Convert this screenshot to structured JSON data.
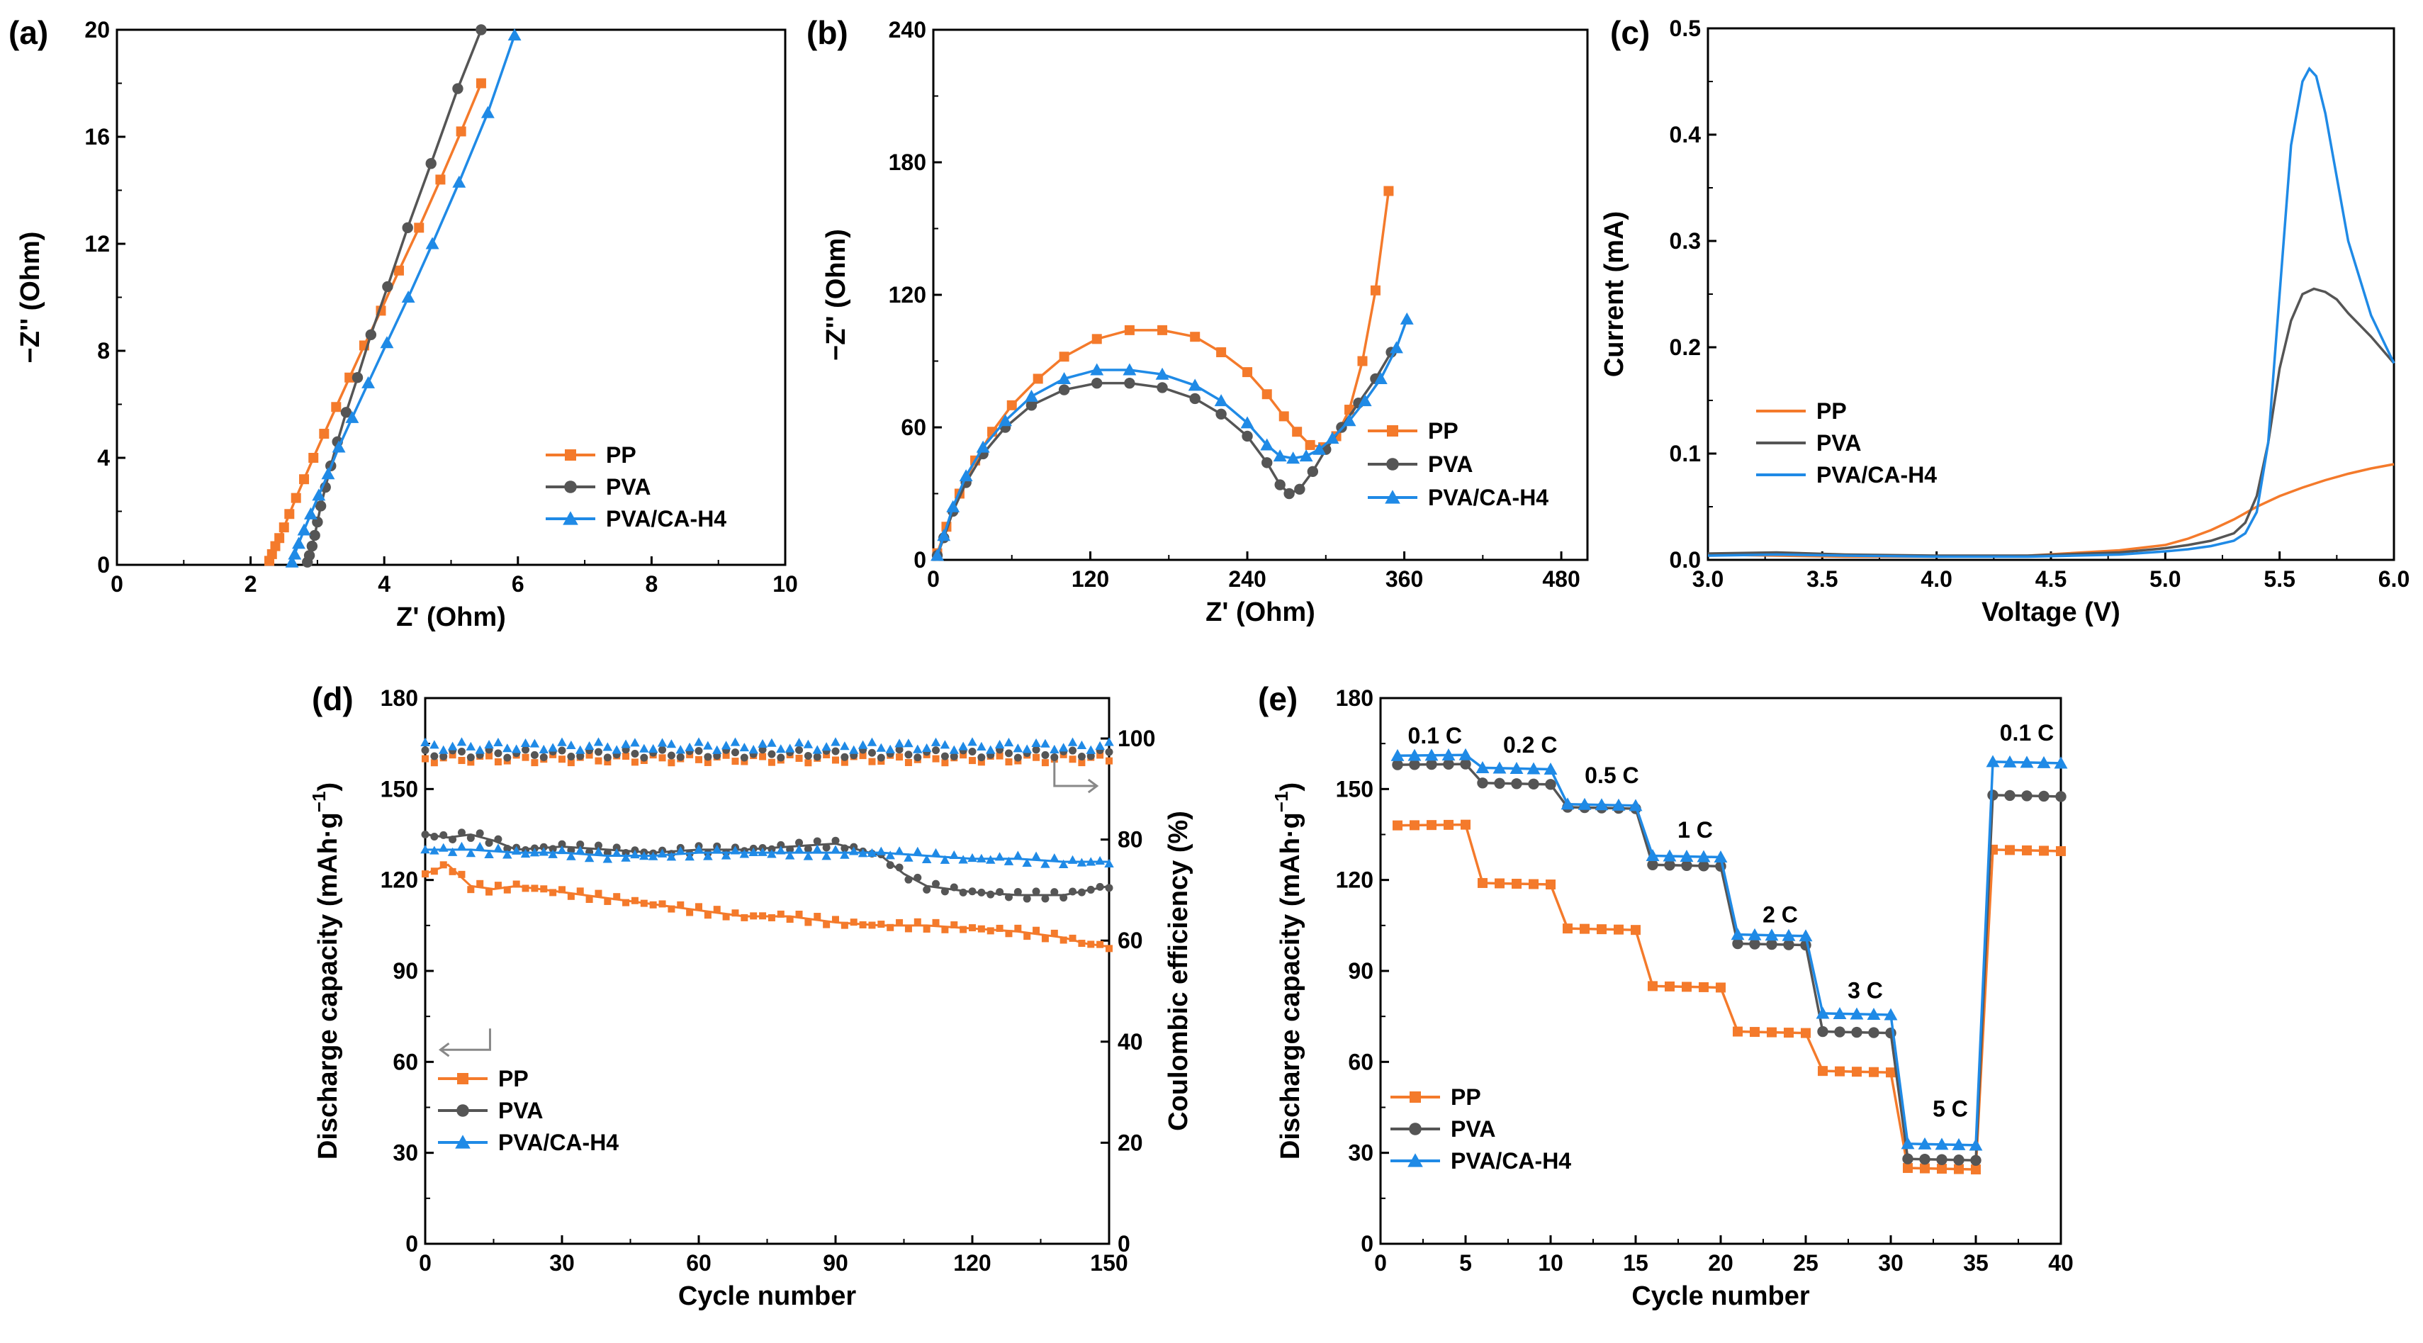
{
  "colors": {
    "PP": "#f47a2b",
    "PVA": "#555555",
    "PVA/CA-H4": "#1f8ae6"
  },
  "chart_data": [
    {
      "id": "a",
      "panel_label": "(a)",
      "type": "scatter-line",
      "xlabel": "Z' (Ohm)",
      "ylabel": "−Z'' (Ohm)",
      "xlim": [
        0,
        10
      ],
      "ylim": [
        0,
        20
      ],
      "xticks": [
        "0",
        "2",
        "4",
        "6",
        "8",
        "10"
      ],
      "yticks": [
        "0",
        "4",
        "8",
        "12",
        "16",
        "20"
      ],
      "legend": {
        "position": "bottom-right",
        "labels": [
          "PP",
          "PVA",
          "PVA/CA-H4"
        ]
      },
      "series": [
        {
          "name": "PP",
          "marker": "square",
          "x": [
            2.28,
            2.32,
            2.37,
            2.43,
            2.5,
            2.58,
            2.68,
            2.8,
            2.94,
            3.1,
            3.28,
            3.48,
            3.7,
            3.95,
            4.22,
            4.52,
            4.84,
            5.15,
            5.45
          ],
          "y": [
            0.15,
            0.4,
            0.7,
            1.0,
            1.4,
            1.9,
            2.5,
            3.2,
            4.0,
            4.9,
            5.9,
            7.0,
            8.2,
            9.5,
            11.0,
            12.6,
            14.4,
            16.2,
            18.0
          ]
        },
        {
          "name": "PVA",
          "marker": "circle",
          "x": [
            2.85,
            2.88,
            2.92,
            2.96,
            3.0,
            3.05,
            3.12,
            3.2,
            3.3,
            3.43,
            3.6,
            3.8,
            4.05,
            4.35,
            4.7,
            5.1,
            5.45
          ],
          "y": [
            0.1,
            0.35,
            0.7,
            1.1,
            1.6,
            2.2,
            2.9,
            3.7,
            4.6,
            5.7,
            7.0,
            8.6,
            10.4,
            12.6,
            15.0,
            17.8,
            20.0
          ]
        },
        {
          "name": "PVA/CA-H4",
          "marker": "triangle",
          "x": [
            2.62,
            2.66,
            2.72,
            2.8,
            2.9,
            3.02,
            3.16,
            3.32,
            3.52,
            3.76,
            4.04,
            4.36,
            4.72,
            5.12,
            5.55,
            5.95
          ],
          "y": [
            0.1,
            0.4,
            0.8,
            1.3,
            1.9,
            2.6,
            3.4,
            4.4,
            5.5,
            6.8,
            8.3,
            10.0,
            12.0,
            14.3,
            16.9,
            19.8
          ]
        }
      ]
    },
    {
      "id": "b",
      "panel_label": "(b)",
      "type": "scatter-line",
      "xlabel": "Z' (Ohm)",
      "ylabel": "−Z'' (Ohm)",
      "xlim": [
        0,
        500
      ],
      "ylim": [
        0,
        240
      ],
      "xticks": [
        "0",
        "120",
        "240",
        "360",
        "480"
      ],
      "yticks": [
        "0",
        "60",
        "120",
        "180",
        "240"
      ],
      "legend": {
        "position": "center-right",
        "labels": [
          "PP",
          "PVA",
          "PVA/CA-H4"
        ]
      },
      "series": [
        {
          "name": "PP",
          "marker": "square",
          "x": [
            3,
            10,
            20,
            32,
            45,
            60,
            80,
            100,
            125,
            150,
            175,
            200,
            220,
            240,
            255,
            268,
            278,
            288,
            298,
            308,
            318,
            328,
            338,
            348
          ],
          "y": [
            3,
            15,
            30,
            45,
            58,
            70,
            82,
            92,
            100,
            104,
            104,
            101,
            94,
            85,
            75,
            65,
            58,
            52,
            51,
            56,
            68,
            90,
            122,
            167
          ]
        },
        {
          "name": "PVA",
          "marker": "circle",
          "x": [
            3,
            8,
            15,
            25,
            38,
            55,
            75,
            100,
            125,
            150,
            175,
            200,
            220,
            240,
            255,
            265,
            272,
            280,
            290,
            300,
            312,
            325,
            338,
            350
          ],
          "y": [
            2,
            10,
            22,
            35,
            48,
            60,
            70,
            77,
            80,
            80,
            78,
            73,
            66,
            56,
            44,
            34,
            30,
            32,
            40,
            50,
            60,
            71,
            82,
            94
          ]
        },
        {
          "name": "PVA/CA-H4",
          "marker": "triangle",
          "x": [
            3,
            8,
            15,
            25,
            38,
            55,
            75,
            100,
            125,
            150,
            175,
            200,
            220,
            240,
            255,
            265,
            275,
            285,
            295,
            305,
            318,
            330,
            342,
            354,
            362
          ],
          "y": [
            2,
            11,
            24,
            38,
            51,
            63,
            74,
            82,
            86,
            86,
            84,
            79,
            72,
            62,
            52,
            47,
            46,
            47,
            50,
            55,
            63,
            72,
            82,
            96,
            109
          ]
        }
      ]
    },
    {
      "id": "c",
      "panel_label": "(c)",
      "type": "line",
      "xlabel": "Voltage (V)",
      "ylabel": "Current (mA)",
      "xlim": [
        3.0,
        6.0
      ],
      "ylim": [
        0,
        0.5
      ],
      "xticks": [
        "3.0",
        "3.5",
        "4.0",
        "4.5",
        "5.0",
        "5.5",
        "6.0"
      ],
      "yticks": [
        "0.0",
        "0.1",
        "0.2",
        "0.3",
        "0.4",
        "0.5"
      ],
      "legend": {
        "position": "middle-left",
        "labels": [
          "PP",
          "PVA",
          "PVA/CA-H4"
        ]
      },
      "series": [
        {
          "name": "PP",
          "x": [
            3.0,
            3.3,
            3.6,
            4.0,
            4.4,
            4.8,
            5.0,
            5.1,
            5.2,
            5.3,
            5.4,
            5.5,
            5.6,
            5.7,
            5.8,
            5.9,
            6.0
          ],
          "y": [
            0.005,
            0.004,
            0.003,
            0.003,
            0.004,
            0.009,
            0.014,
            0.02,
            0.028,
            0.038,
            0.05,
            0.06,
            0.068,
            0.075,
            0.081,
            0.086,
            0.09
          ]
        },
        {
          "name": "PVA",
          "x": [
            3.0,
            3.3,
            3.6,
            4.0,
            4.4,
            4.8,
            5.0,
            5.1,
            5.2,
            5.3,
            5.35,
            5.4,
            5.45,
            5.5,
            5.55,
            5.6,
            5.65,
            5.7,
            5.75,
            5.8,
            5.9,
            6.0
          ],
          "y": [
            0.006,
            0.007,
            0.005,
            0.004,
            0.004,
            0.007,
            0.011,
            0.014,
            0.018,
            0.025,
            0.035,
            0.06,
            0.11,
            0.18,
            0.225,
            0.25,
            0.255,
            0.252,
            0.245,
            0.232,
            0.21,
            0.185
          ]
        },
        {
          "name": "PVA/CA-H4",
          "x": [
            3.0,
            3.3,
            3.6,
            4.0,
            4.4,
            4.8,
            5.0,
            5.1,
            5.2,
            5.3,
            5.35,
            5.4,
            5.45,
            5.5,
            5.55,
            5.6,
            5.63,
            5.66,
            5.7,
            5.75,
            5.8,
            5.9,
            6.0
          ],
          "y": [
            0.004,
            0.005,
            0.004,
            0.003,
            0.003,
            0.005,
            0.008,
            0.01,
            0.013,
            0.018,
            0.025,
            0.045,
            0.11,
            0.25,
            0.39,
            0.45,
            0.462,
            0.455,
            0.42,
            0.36,
            0.3,
            0.23,
            0.185
          ]
        }
      ]
    },
    {
      "id": "d",
      "panel_label": "(d)",
      "type": "scatter-dual-axis",
      "xlabel": "Cycle number",
      "ylabel": "Discharge capacity (mAh·g",
      "ylabel_sup": "−1",
      "ylabel_end": ")",
      "y2label": "Coulombic efficiency (%)",
      "xlim": [
        0,
        150
      ],
      "ylim": [
        0,
        180
      ],
      "y2lim": [
        0,
        108
      ],
      "xticks": [
        "0",
        "30",
        "60",
        "90",
        "120",
        "150"
      ],
      "yticks": [
        "0",
        "30",
        "60",
        "90",
        "120",
        "150",
        "180"
      ],
      "y2ticks": [
        "0",
        "20",
        "40",
        "60",
        "80",
        "100"
      ],
      "legend": {
        "position": "bottom-left",
        "labels": [
          "PP",
          "PVA",
          "PVA/CA-H4"
        ]
      },
      "capacity_series": [
        {
          "name": "PP",
          "marker": "square",
          "x": [
            0,
            5,
            10,
            15,
            20,
            30,
            40,
            50,
            60,
            70,
            80,
            90,
            100,
            110,
            120,
            130,
            140,
            145,
            150
          ],
          "y": [
            122,
            125,
            118,
            117,
            118,
            116,
            114,
            112,
            110,
            108,
            108,
            106,
            105,
            105,
            104,
            103,
            101,
            99,
            98
          ]
        },
        {
          "name": "PVA",
          "marker": "circle",
          "x": [
            0,
            5,
            10,
            15,
            20,
            30,
            40,
            50,
            60,
            70,
            80,
            90,
            100,
            105,
            110,
            120,
            130,
            140,
            150
          ],
          "y": [
            135,
            134,
            135,
            133,
            130,
            131,
            130,
            129,
            130,
            130,
            131,
            132,
            128,
            122,
            118,
            116,
            115,
            115,
            118
          ]
        },
        {
          "name": "PVA/CA-H4",
          "marker": "triangle",
          "x": [
            0,
            10,
            20,
            30,
            40,
            50,
            60,
            70,
            80,
            90,
            100,
            110,
            120,
            130,
            140,
            150
          ],
          "y": [
            130,
            130,
            129,
            129,
            128,
            128,
            129,
            129,
            129,
            129,
            129,
            128,
            127,
            127,
            126,
            126
          ]
        }
      ],
      "efficiency_series": [
        {
          "name": "PP",
          "x": [
            0,
            150
          ],
          "y": [
            96,
            96
          ]
        },
        {
          "name": "PVA",
          "x": [
            0,
            150
          ],
          "y": [
            97,
            97
          ]
        },
        {
          "name": "PVA/CA-H4",
          "x": [
            0,
            150
          ],
          "y": [
            98.5,
            98.5
          ]
        }
      ]
    },
    {
      "id": "e",
      "panel_label": "(e)",
      "type": "scatter-line",
      "xlabel": "Cycle number",
      "ylabel": "Discharge capacity (mAh·g",
      "ylabel_sup": "−1",
      "ylabel_end": ")",
      "xlim": [
        0,
        40
      ],
      "ylim": [
        0,
        180
      ],
      "xticks": [
        "0",
        "5",
        "10",
        "15",
        "20",
        "25",
        "30",
        "35",
        "40"
      ],
      "yticks": [
        "0",
        "30",
        "60",
        "90",
        "120",
        "150",
        "180"
      ],
      "legend": {
        "position": "bottom-left",
        "labels": [
          "PP",
          "PVA",
          "PVA/CA-H4"
        ]
      },
      "rate_labels": [
        {
          "text": "0.1 C",
          "x": 3.2,
          "y": 165
        },
        {
          "text": "0.2 C",
          "x": 8.8,
          "y": 162
        },
        {
          "text": "0.5 C",
          "x": 13.6,
          "y": 152
        },
        {
          "text": "1 C",
          "x": 18.5,
          "y": 134
        },
        {
          "text": "2 C",
          "x": 23.5,
          "y": 106
        },
        {
          "text": "3 C",
          "x": 28.5,
          "y": 81
        },
        {
          "text": "5 C",
          "x": 33.5,
          "y": 42
        },
        {
          "text": "0.1 C",
          "x": 38.0,
          "y": 166
        }
      ],
      "series": [
        {
          "name": "PP",
          "marker": "square",
          "plateaus": [
            138,
            119,
            104,
            85,
            70,
            57,
            25,
            130
          ]
        },
        {
          "name": "PVA",
          "marker": "circle",
          "plateaus": [
            158,
            152,
            144,
            125,
            99,
            70,
            28,
            148
          ]
        },
        {
          "name": "PVA/CA-H4",
          "marker": "triangle",
          "plateaus": [
            161,
            157,
            145,
            128,
            102,
            76,
            33,
            159
          ]
        }
      ]
    }
  ]
}
